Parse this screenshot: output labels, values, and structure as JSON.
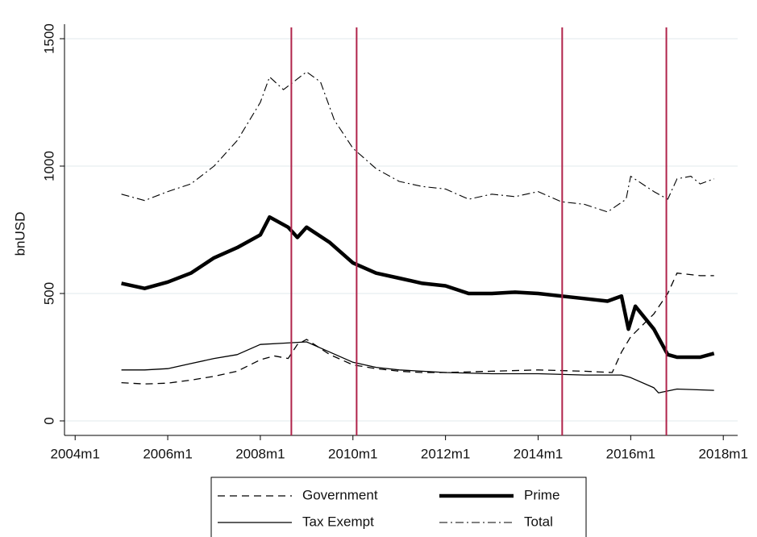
{
  "chart_data": {
    "type": "line",
    "y_label": "bnUSD",
    "xlim": [
      2003.77,
      2018.31
    ],
    "xticks": [
      {
        "value": 2004,
        "label": "2004m1"
      },
      {
        "value": 2006,
        "label": "2006m1"
      },
      {
        "value": 2008,
        "label": "2008m1"
      },
      {
        "value": 2010,
        "label": "2010m1"
      },
      {
        "value": 2012,
        "label": "2012m1"
      },
      {
        "value": 2014,
        "label": "2014m1"
      },
      {
        "value": 2016,
        "label": "2016m1"
      },
      {
        "value": 2018,
        "label": "2018m1"
      }
    ],
    "ylim": [
      -57,
      1557
    ],
    "yticks": [
      0,
      500,
      1000,
      1500
    ],
    "grid": true,
    "vlines": [
      2008.67,
      2010.08,
      2014.52,
      2016.77
    ],
    "vline_color": "#b0234a",
    "series": [
      {
        "name": "Government",
        "color": "#000000",
        "width": 1.3,
        "dash": "9,6",
        "x": [
          2005,
          2005.5,
          2006,
          2006.5,
          2007,
          2007.5,
          2008,
          2008.3,
          2008.6,
          2008.8,
          2009,
          2009.5,
          2010,
          2010.5,
          2011,
          2011.5,
          2012,
          2013,
          2014,
          2015,
          2015.6,
          2015.8,
          2016,
          2016.5,
          2016.8,
          2017,
          2017.5,
          2017.8
        ],
        "values": [
          150,
          145,
          148,
          160,
          175,
          195,
          240,
          255,
          245,
          300,
          320,
          260,
          220,
          205,
          195,
          190,
          190,
          195,
          200,
          195,
          190,
          270,
          330,
          420,
          500,
          580,
          570,
          570
        ]
      },
      {
        "name": "Prime",
        "color": "#000000",
        "width": 4.5,
        "dash": "",
        "x": [
          2005,
          2005.5,
          2006,
          2006.5,
          2007,
          2007.5,
          2008,
          2008.2,
          2008.6,
          2008.8,
          2009,
          2009.5,
          2010,
          2010.5,
          2011,
          2011.5,
          2012,
          2012.5,
          2013,
          2013.5,
          2014,
          2014.5,
          2015,
          2015.5,
          2015.8,
          2015.95,
          2016.1,
          2016.5,
          2016.8,
          2017,
          2017.5,
          2017.8
        ],
        "values": [
          540,
          520,
          545,
          580,
          640,
          680,
          730,
          800,
          760,
          720,
          760,
          700,
          620,
          580,
          560,
          540,
          530,
          500,
          500,
          505,
          500,
          490,
          480,
          470,
          490,
          360,
          450,
          360,
          260,
          250,
          250,
          265
        ]
      },
      {
        "name": "Tax Exempt",
        "color": "#000000",
        "width": 1.3,
        "dash": "",
        "x": [
          2005,
          2005.5,
          2006,
          2006.5,
          2007,
          2007.5,
          2008,
          2008.5,
          2009,
          2009.5,
          2010,
          2010.5,
          2011,
          2012,
          2013,
          2014,
          2015,
          2015.8,
          2016,
          2016.5,
          2016.6,
          2017,
          2017.8
        ],
        "values": [
          200,
          200,
          205,
          225,
          245,
          260,
          300,
          305,
          310,
          270,
          230,
          210,
          200,
          190,
          185,
          185,
          180,
          180,
          170,
          130,
          110,
          125,
          120
        ]
      },
      {
        "name": "Total",
        "color": "#000000",
        "width": 1.1,
        "dash": "10,4,2,4",
        "x": [
          2005,
          2005.5,
          2006,
          2006.5,
          2007,
          2007.5,
          2008,
          2008.2,
          2008.5,
          2009,
          2009.3,
          2009.6,
          2010,
          2010.5,
          2011,
          2011.5,
          2012,
          2012.5,
          2013,
          2013.5,
          2014,
          2014.5,
          2015,
          2015.5,
          2015.9,
          2016,
          2016.5,
          2016.8,
          2017,
          2017.3,
          2017.5,
          2017.8
        ],
        "values": [
          890,
          865,
          900,
          930,
          1000,
          1100,
          1250,
          1350,
          1300,
          1370,
          1330,
          1180,
          1070,
          990,
          940,
          920,
          910,
          870,
          890,
          880,
          900,
          860,
          850,
          820,
          870,
          960,
          900,
          870,
          950,
          960,
          930,
          950
        ]
      }
    ]
  }
}
